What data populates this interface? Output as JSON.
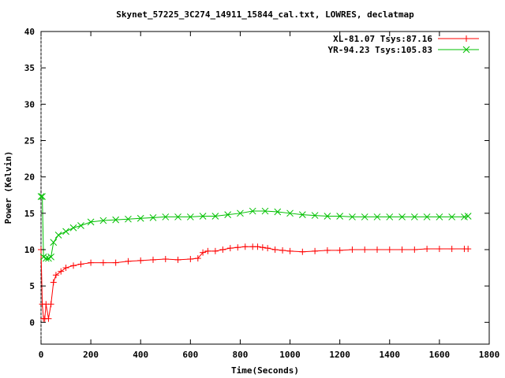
{
  "chart_data": {
    "type": "line",
    "title": "Skynet_57225_3C274_14911_15844_cal.txt, LOWRES, declatmap",
    "xlabel": "Time(Seconds)",
    "ylabel": "Power (Kelvin)",
    "xlim": [
      0,
      1800
    ],
    "ylim": [
      -3,
      40
    ],
    "xticks": [
      0,
      200,
      400,
      600,
      800,
      1000,
      1200,
      1400,
      1600,
      1800
    ],
    "yticks": [
      0,
      5,
      10,
      15,
      20,
      25,
      30,
      35,
      40
    ],
    "legend_position": "top-right",
    "series": [
      {
        "name": "XL-81.07 Tsys:87.16",
        "color": "#ff0000",
        "marker": "plus",
        "x": [
          0,
          5,
          10,
          15,
          20,
          30,
          40,
          50,
          60,
          80,
          100,
          130,
          160,
          200,
          250,
          300,
          350,
          400,
          450,
          500,
          550,
          600,
          630,
          650,
          670,
          700,
          730,
          760,
          790,
          820,
          850,
          870,
          890,
          910,
          940,
          970,
          1000,
          1050,
          1100,
          1150,
          1200,
          1250,
          1300,
          1350,
          1400,
          1450,
          1500,
          1550,
          1600,
          1650,
          1700,
          1715
        ],
        "y": [
          10,
          2.5,
          0.5,
          0.5,
          2.5,
          0.5,
          2.5,
          5.5,
          6.5,
          7,
          7.5,
          7.8,
          8,
          8.2,
          8.2,
          8.2,
          8.4,
          8.5,
          8.6,
          8.7,
          8.6,
          8.7,
          8.8,
          9.6,
          9.8,
          9.8,
          10,
          10.2,
          10.3,
          10.4,
          10.4,
          10.4,
          10.3,
          10.2,
          10,
          9.9,
          9.8,
          9.7,
          9.8,
          9.9,
          9.9,
          10,
          10,
          10,
          10,
          10,
          10,
          10.1,
          10.1,
          10.1,
          10.1,
          10.1
        ]
      },
      {
        "name": "YR-94.23 Tsys:105.83",
        "color": "#00c000",
        "marker": "cross",
        "x": [
          0,
          5,
          10,
          20,
          30,
          40,
          50,
          70,
          100,
          130,
          160,
          200,
          250,
          300,
          350,
          400,
          450,
          500,
          550,
          600,
          650,
          700,
          750,
          800,
          850,
          900,
          950,
          1000,
          1050,
          1100,
          1150,
          1200,
          1250,
          1300,
          1350,
          1400,
          1450,
          1500,
          1550,
          1600,
          1650,
          1700,
          1715
        ],
        "y": [
          17.3,
          17.3,
          9,
          8.8,
          8.8,
          9,
          11,
          12,
          12.5,
          13,
          13.3,
          13.8,
          14,
          14.1,
          14.2,
          14.3,
          14.4,
          14.5,
          14.5,
          14.5,
          14.6,
          14.6,
          14.8,
          15,
          15.3,
          15.3,
          15.2,
          15,
          14.8,
          14.7,
          14.6,
          14.6,
          14.5,
          14.5,
          14.5,
          14.5,
          14.5,
          14.5,
          14.5,
          14.5,
          14.5,
          14.5,
          14.6
        ]
      }
    ]
  }
}
